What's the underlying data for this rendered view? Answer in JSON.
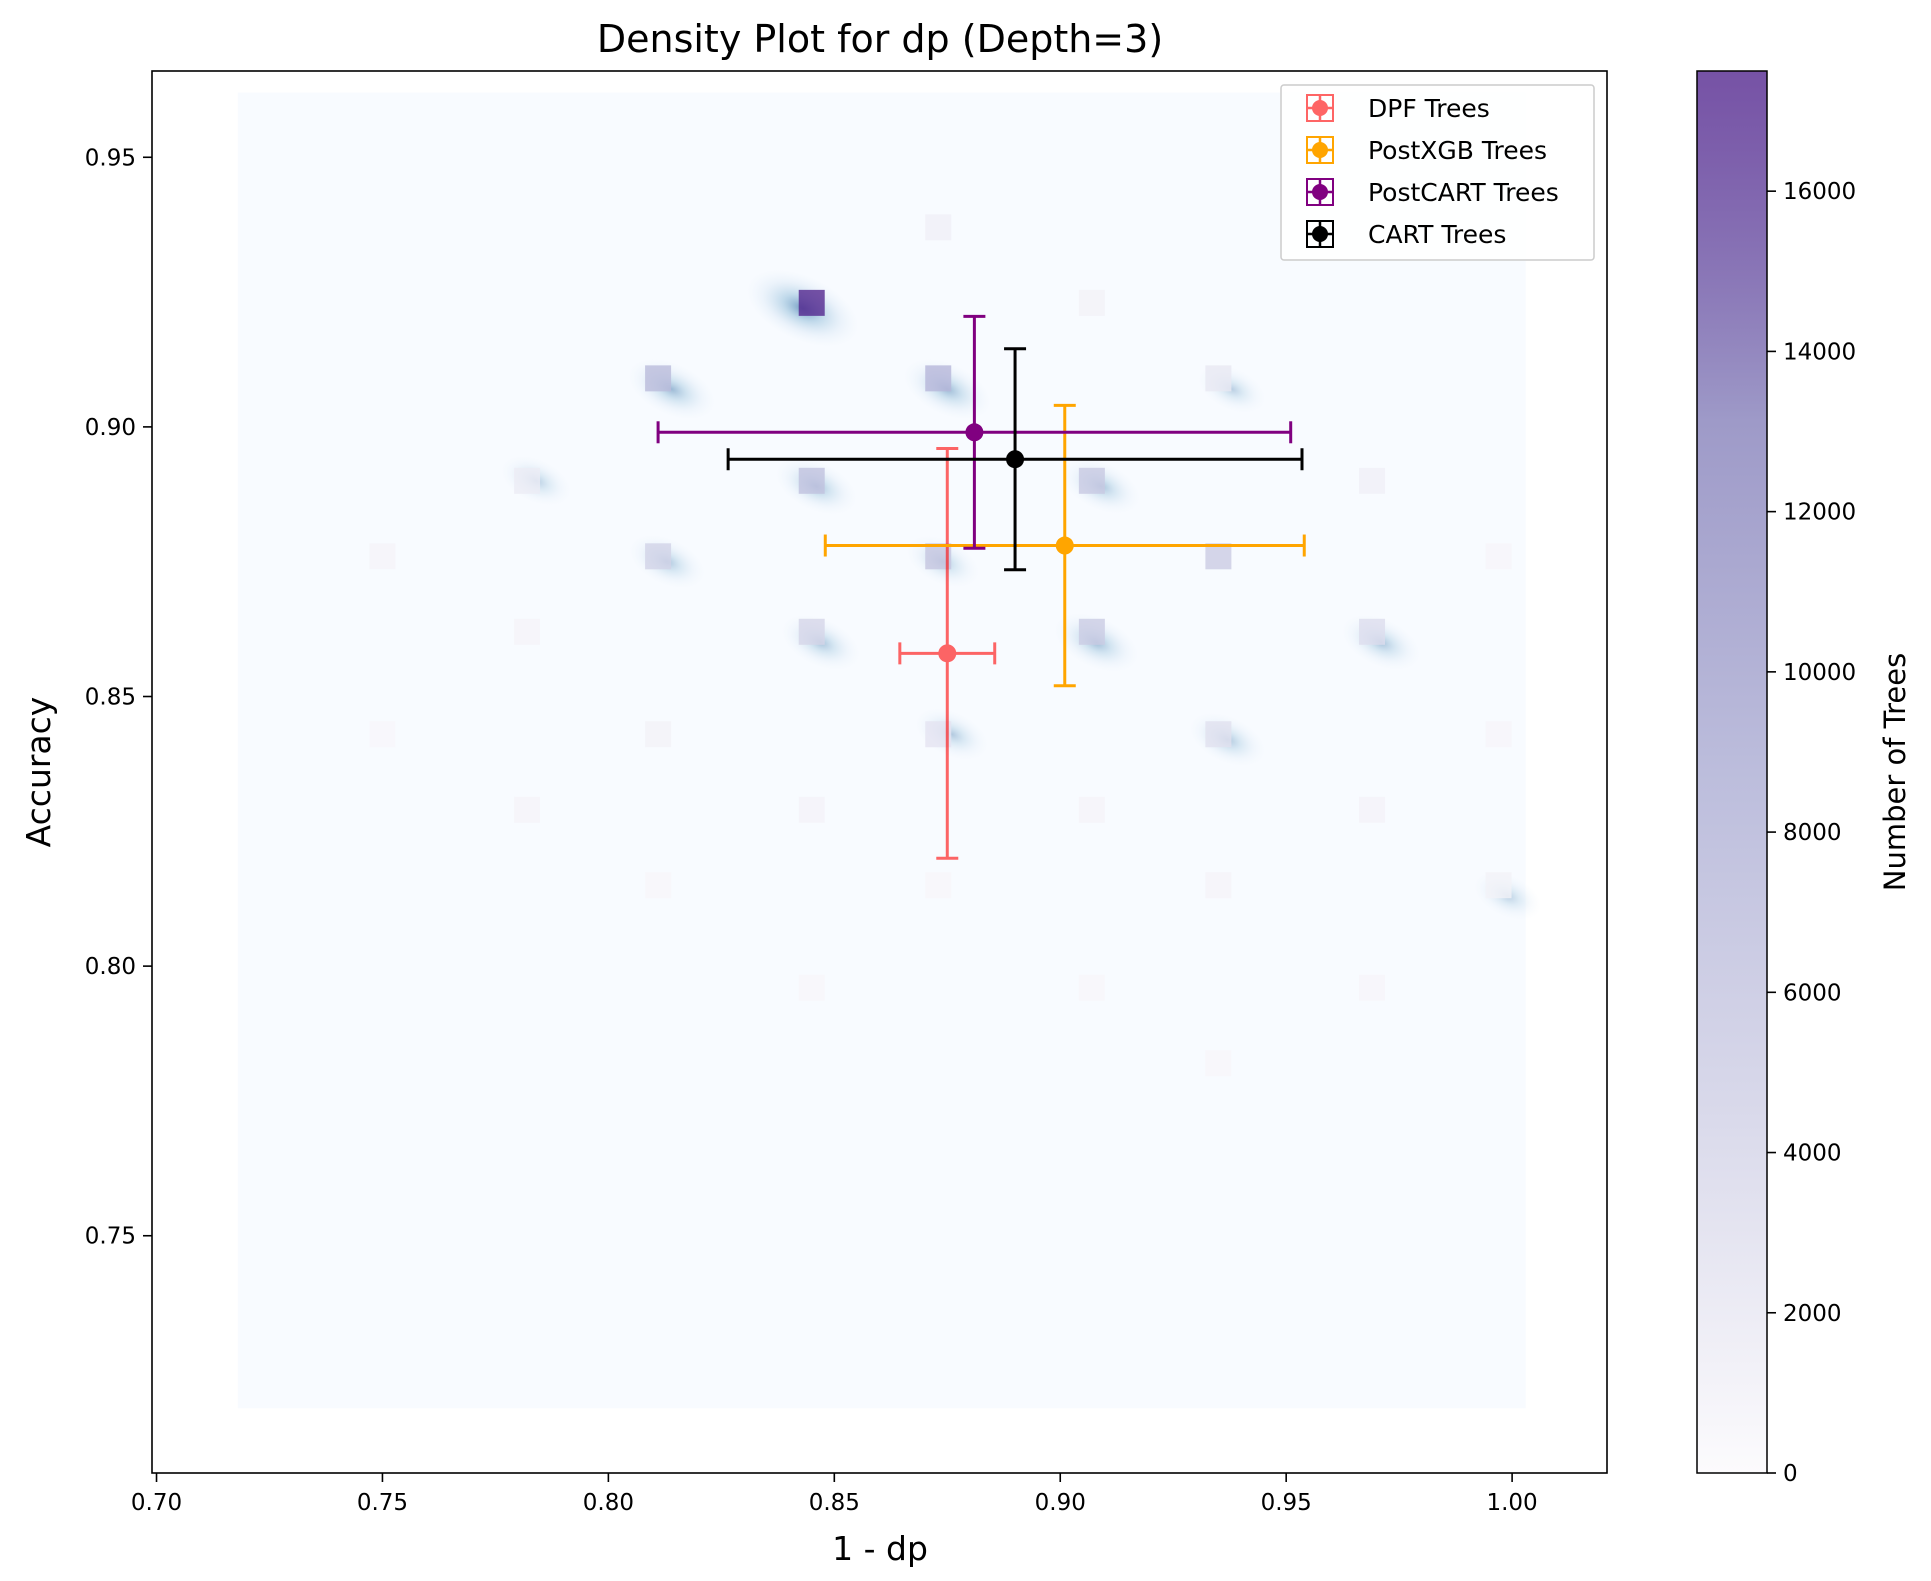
{
  "chart_data": {
    "type": "scatter",
    "title": "Density Plot for dp (Depth=3)",
    "xlabel": "1 - dp",
    "ylabel": "Accuracy",
    "xlim": [
      0.699,
      1.021
    ],
    "ylim": [
      0.706,
      0.966
    ],
    "x_ticks": [
      "0.70",
      "0.75",
      "0.80",
      "0.85",
      "0.90",
      "0.95",
      "1.00"
    ],
    "y_ticks": [
      "0.75",
      "0.80",
      "0.85",
      "0.90",
      "0.95"
    ],
    "grid": false,
    "legend_position": "top-right",
    "colorbar": {
      "label": "Number of Trees",
      "range": [
        0,
        17500
      ],
      "ticks": [
        "0",
        "2000",
        "4000",
        "6000",
        "8000",
        "10000",
        "12000",
        "14000",
        "16000"
      ],
      "colormap": "Purples",
      "color_low": "#fcfbfd",
      "color_high": "#54278f"
    },
    "density_cells": [
      {
        "x": 0.845,
        "y": 0.923,
        "count": 17500
      },
      {
        "x": 0.811,
        "y": 0.909,
        "count": 9000
      },
      {
        "x": 0.873,
        "y": 0.909,
        "count": 9500
      },
      {
        "x": 0.845,
        "y": 0.89,
        "count": 8000
      },
      {
        "x": 0.907,
        "y": 0.89,
        "count": 7000
      },
      {
        "x": 0.811,
        "y": 0.876,
        "count": 5500
      },
      {
        "x": 0.873,
        "y": 0.876,
        "count": 7500
      },
      {
        "x": 0.935,
        "y": 0.876,
        "count": 6500
      },
      {
        "x": 0.845,
        "y": 0.862,
        "count": 5000
      },
      {
        "x": 0.907,
        "y": 0.862,
        "count": 6500
      },
      {
        "x": 0.969,
        "y": 0.862,
        "count": 4000
      },
      {
        "x": 0.935,
        "y": 0.843,
        "count": 3500
      },
      {
        "x": 0.873,
        "y": 0.843,
        "count": 3000
      },
      {
        "x": 0.935,
        "y": 0.909,
        "count": 2500
      },
      {
        "x": 0.782,
        "y": 0.89,
        "count": 2000
      },
      {
        "x": 0.969,
        "y": 0.89,
        "count": 1500
      },
      {
        "x": 0.873,
        "y": 0.937,
        "count": 1500
      },
      {
        "x": 0.907,
        "y": 0.923,
        "count": 1200
      },
      {
        "x": 0.75,
        "y": 0.876,
        "count": 900
      },
      {
        "x": 0.782,
        "y": 0.862,
        "count": 900
      },
      {
        "x": 0.811,
        "y": 0.843,
        "count": 1200
      },
      {
        "x": 0.845,
        "y": 0.829,
        "count": 1000
      },
      {
        "x": 0.782,
        "y": 0.829,
        "count": 900
      },
      {
        "x": 0.907,
        "y": 0.829,
        "count": 900
      },
      {
        "x": 0.969,
        "y": 0.829,
        "count": 1000
      },
      {
        "x": 0.997,
        "y": 0.876,
        "count": 800
      },
      {
        "x": 0.997,
        "y": 0.843,
        "count": 800
      },
      {
        "x": 0.997,
        "y": 0.815,
        "count": 1200
      },
      {
        "x": 0.935,
        "y": 0.815,
        "count": 900
      },
      {
        "x": 0.873,
        "y": 0.815,
        "count": 700
      },
      {
        "x": 0.811,
        "y": 0.815,
        "count": 700
      },
      {
        "x": 0.845,
        "y": 0.796,
        "count": 700
      },
      {
        "x": 0.907,
        "y": 0.796,
        "count": 700
      },
      {
        "x": 0.969,
        "y": 0.796,
        "count": 800
      },
      {
        "x": 0.935,
        "y": 0.782,
        "count": 700
      },
      {
        "x": 0.75,
        "y": 0.843,
        "count": 600
      }
    ],
    "density_hotspots": [
      {
        "x": 0.843,
        "y": 0.922,
        "strength": 1.0
      },
      {
        "x": 0.814,
        "y": 0.907,
        "strength": 0.55
      },
      {
        "x": 0.875,
        "y": 0.907,
        "strength": 0.55
      },
      {
        "x": 0.846,
        "y": 0.889,
        "strength": 0.45
      },
      {
        "x": 0.908,
        "y": 0.86,
        "strength": 0.5
      },
      {
        "x": 0.909,
        "y": 0.889,
        "strength": 0.4
      },
      {
        "x": 0.971,
        "y": 0.86,
        "strength": 0.4
      },
      {
        "x": 0.937,
        "y": 0.842,
        "strength": 0.35
      },
      {
        "x": 0.847,
        "y": 0.86,
        "strength": 0.4
      },
      {
        "x": 0.876,
        "y": 0.843,
        "strength": 0.3
      },
      {
        "x": 0.813,
        "y": 0.875,
        "strength": 0.35
      },
      {
        "x": 0.784,
        "y": 0.89,
        "strength": 0.25
      },
      {
        "x": 0.938,
        "y": 0.907,
        "strength": 0.2
      },
      {
        "x": 0.999,
        "y": 0.813,
        "strength": 0.2
      },
      {
        "x": 0.874,
        "y": 0.875,
        "strength": 0.3
      }
    ],
    "series": [
      {
        "name": "DPF Trees",
        "color": "#ff0000",
        "alpha": 0.6,
        "x": 0.875,
        "y": 0.858,
        "xerr": 0.0105,
        "yerr": 0.038
      },
      {
        "name": "PostXGB Trees",
        "color": "#ffa500",
        "alpha": 1.0,
        "x": 0.901,
        "y": 0.878,
        "xerr": 0.053,
        "yerr": 0.026
      },
      {
        "name": "PostCART Trees",
        "color": "#800080",
        "alpha": 1.0,
        "x": 0.881,
        "y": 0.899,
        "xerr": 0.07,
        "yerr": 0.0215
      },
      {
        "name": "CART Trees",
        "color": "#000000",
        "alpha": 1.0,
        "x": 0.89,
        "y": 0.894,
        "xerr": 0.0635,
        "yerr": 0.0205
      }
    ]
  }
}
